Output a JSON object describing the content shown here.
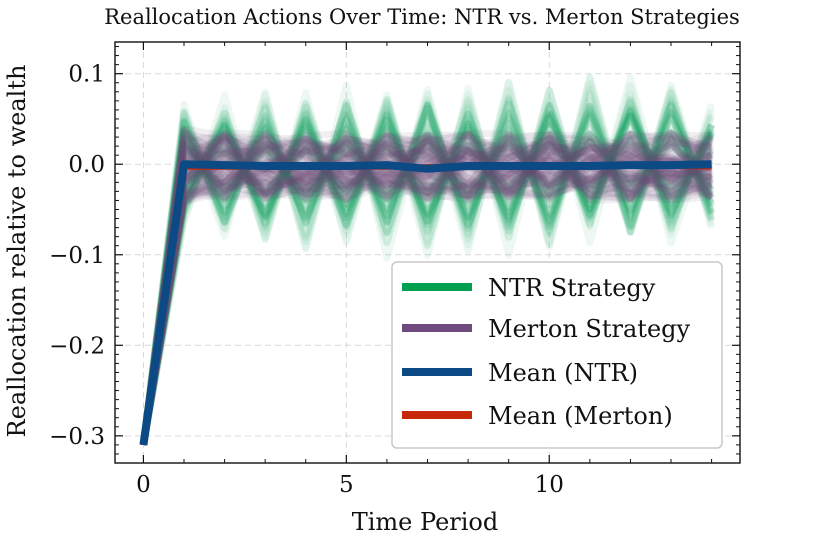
{
  "chart_data": {
    "type": "line",
    "title": "Reallocation Actions Over Time: NTR vs. Merton Strategies",
    "xlabel": "Time Period",
    "ylabel": "Reallocation relative to wealth",
    "xlim": [
      -0.7,
      14.7
    ],
    "ylim": [
      -0.33,
      0.135
    ],
    "xticks": [
      0,
      5,
      10
    ],
    "xtick_labels": [
      "0",
      "5",
      "10"
    ],
    "yticks": [
      0.1,
      0.0,
      -0.1,
      -0.2,
      -0.3
    ],
    "ytick_labels": [
      "0.1",
      "0.0",
      "−0.1",
      "−0.2",
      "−0.3"
    ],
    "grid": true,
    "legend_position": "lower-right",
    "x": [
      0,
      1,
      2,
      3,
      4,
      5,
      6,
      7,
      8,
      9,
      10,
      11,
      12,
      13,
      14
    ],
    "series": [
      {
        "name": "NTR Strategy",
        "color": "#00a050",
        "role": "paths",
        "band_upper": [
          -0.31,
          0.07,
          0.08,
          0.085,
          0.09,
          0.09,
          0.095,
          0.095,
          0.095,
          0.1,
          0.1,
          0.1,
          0.105,
          0.1,
          0.07
        ],
        "band_lower": [
          -0.31,
          -0.07,
          -0.09,
          -0.1,
          -0.1,
          -0.1,
          -0.105,
          -0.105,
          -0.105,
          -0.105,
          -0.105,
          -0.1,
          -0.1,
          -0.1,
          -0.08
        ]
      },
      {
        "name": "Merton Strategy",
        "color": "#6e4a7e",
        "role": "paths",
        "band_upper": [
          -0.31,
          0.04,
          0.035,
          0.035,
          0.035,
          0.035,
          0.035,
          0.035,
          0.035,
          0.035,
          0.035,
          0.035,
          0.035,
          0.035,
          0.035
        ],
        "band_lower": [
          -0.31,
          -0.045,
          -0.04,
          -0.04,
          -0.04,
          -0.04,
          -0.04,
          -0.04,
          -0.04,
          -0.04,
          -0.04,
          -0.04,
          -0.04,
          -0.04,
          -0.04
        ]
      },
      {
        "name": "Mean (NTR)",
        "color": "#0c4a85",
        "role": "mean",
        "values": [
          -0.31,
          0.0,
          -0.001,
          -0.002,
          -0.002,
          -0.002,
          -0.001,
          -0.005,
          -0.002,
          -0.002,
          -0.002,
          -0.002,
          -0.001,
          -0.001,
          0.0
        ]
      },
      {
        "name": "Mean (Merton)",
        "color": "#c8280a",
        "role": "mean",
        "values": [
          -0.31,
          -0.004,
          -0.004,
          -0.004,
          -0.004,
          -0.004,
          -0.004,
          -0.002,
          -0.003,
          -0.003,
          -0.003,
          -0.003,
          -0.003,
          -0.003,
          -0.004
        ]
      }
    ]
  }
}
